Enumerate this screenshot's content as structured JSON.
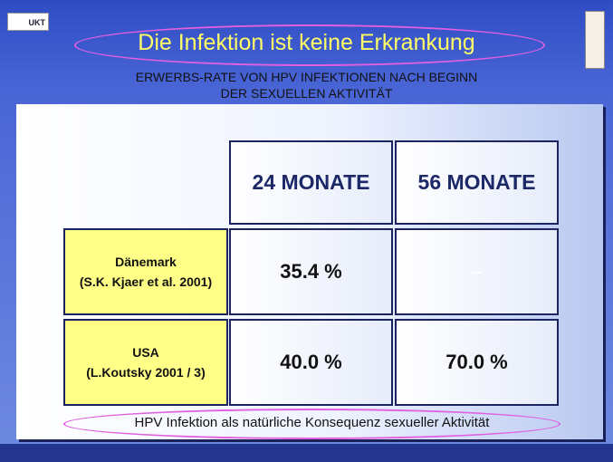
{
  "header": {
    "logo": "UKT",
    "title": "Die Infektion ist keine Erkrankung",
    "subtitle": [
      "ERWERBS-RATE VON HPV INFEKTIONEN NACH BEGINN",
      "DER SEXUELLEN AKTIVITÄT"
    ]
  },
  "table": {
    "columns": [
      "24 MONATE",
      "56 MONATE"
    ],
    "rows": [
      {
        "label": [
          "Dänemark",
          "(S.K. Kjaer et al. 2001)"
        ],
        "cells": [
          "35.4 %",
          "–"
        ]
      },
      {
        "label": [
          "USA",
          "(L.Koutsky 2001 / 3)"
        ],
        "cells": [
          "40.0 %",
          "70.0 %"
        ]
      }
    ]
  },
  "footer": "HPV Infektion als natürliche Konsequenz sexueller Aktivität"
}
